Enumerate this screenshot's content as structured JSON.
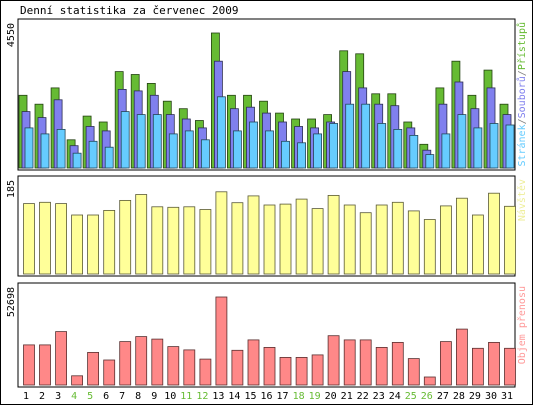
{
  "chart_data": {
    "type": "bar",
    "title": "Denní statistika za červenec 2009",
    "categories": [
      "1",
      "2",
      "3",
      "4",
      "5",
      "6",
      "7",
      "8",
      "9",
      "10",
      "11",
      "12",
      "13",
      "14",
      "15",
      "16",
      "17",
      "18",
      "19",
      "20",
      "21",
      "22",
      "23",
      "24",
      "25",
      "26",
      "27",
      "28",
      "29",
      "30",
      "31"
    ],
    "weekend_days": [
      "4",
      "5",
      "11",
      "12",
      "18",
      "19",
      "25",
      "26"
    ],
    "panels": [
      {
        "id": "pristupy",
        "max_label": "4550",
        "ylim": [
          0,
          4550
        ],
        "legend": [
          {
            "name": "Stránek",
            "color": "#66ccff"
          },
          {
            "name": "/",
            "color": "#808080"
          },
          {
            "name": "Souborů",
            "color": "#8080ee"
          },
          {
            "name": "/",
            "color": "#808080"
          },
          {
            "name": "Přístupů",
            "color": "#66bb33"
          }
        ],
        "series": [
          {
            "name": "Přístupů",
            "color": "#66bb33",
            "values": [
              2450,
              2150,
              2700,
              950,
              1750,
              1550,
              3250,
              3150,
              2850,
              2250,
              2000,
              1600,
              4550,
              2450,
              2450,
              2250,
              1850,
              1650,
              1650,
              1800,
              3950,
              3850,
              2500,
              2500,
              1550,
              800,
              2700,
              3600,
              2450,
              3300,
              2150
            ]
          },
          {
            "name": "Souborů",
            "color": "#8080ee",
            "values": [
              1900,
              1700,
              2300,
              750,
              1400,
              1250,
              2650,
              2600,
              2450,
              1800,
              1650,
              1350,
              3600,
              2000,
              2050,
              1850,
              1550,
              1400,
              1350,
              1550,
              3250,
              2700,
              2150,
              2100,
              1350,
              600,
              2150,
              2900,
              2000,
              2700,
              1800
            ]
          },
          {
            "name": "Stránek",
            "color": "#66ccff",
            "values": [
              1350,
              1150,
              1300,
              500,
              900,
              700,
              1900,
              1800,
              1800,
              1150,
              1250,
              950,
              2400,
              1250,
              1550,
              1250,
              900,
              850,
              1150,
              1500,
              2150,
              2150,
              1500,
              1300,
              1100,
              450,
              1150,
              1800,
              1350,
              1500,
              1450
            ]
          }
        ]
      },
      {
        "id": "navstevy",
        "max_label": "185",
        "ylim": [
          0,
          185
        ],
        "legend": [
          {
            "name": "Návštěv",
            "color": "#eeee99"
          }
        ],
        "series": [
          {
            "name": "Návštěv",
            "color": "#ffff99",
            "values": [
              155,
              158,
              155,
              130,
              130,
              140,
              162,
              175,
              148,
              147,
              148,
              142,
              181,
              157,
              172,
              152,
              154,
              165,
              144,
              173,
              152,
              135,
              152,
              158,
              139,
              120,
              150,
              167,
              130,
              178,
              149
            ]
          }
        ]
      },
      {
        "id": "objem",
        "max_label": "52698",
        "ylim": [
          0,
          52698
        ],
        "legend": [
          {
            "name": "Objem přenosu",
            "color": "#ff9999"
          }
        ],
        "series": [
          {
            "name": "Objem přenosu",
            "color": "#ff8888",
            "values": [
              24000,
              24000,
              32000,
              5500,
              19500,
              15000,
              26000,
              29000,
              27500,
              23000,
              21000,
              15500,
              52698,
              20800,
              27000,
              22500,
              16500,
              16500,
              18000,
              29500,
              27000,
              27000,
              22500,
              25500,
              15800,
              4800,
              26000,
              33500,
              22000,
              25500,
              22000
            ]
          }
        ]
      }
    ]
  }
}
